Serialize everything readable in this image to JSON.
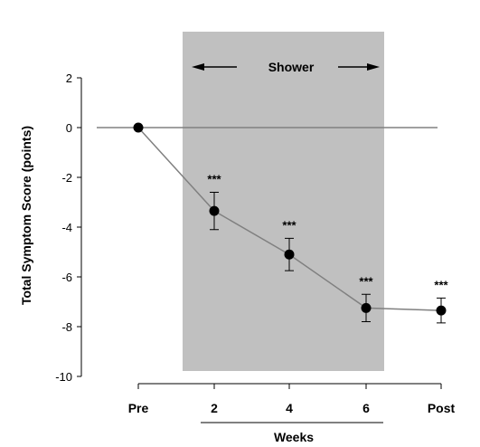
{
  "chart_data": {
    "type": "line",
    "ylabel": "Total Symptom Score (points)",
    "xlabel": "Weeks",
    "ylim": [
      -10,
      2
    ],
    "yticks": [
      2,
      0,
      -2,
      -4,
      -6,
      -8,
      -10
    ],
    "ytick_labels": [
      "2",
      "0",
      "-2",
      "-4",
      "-6",
      "-8",
      "-10"
    ],
    "categories": [
      "Pre",
      "2",
      "4",
      "6",
      "Post"
    ],
    "baseline": 0,
    "shaded_region": {
      "label": "Shower",
      "start_category": "2",
      "end_category": "6",
      "color": "#c0c0c0"
    },
    "weeks_bracket": {
      "label": "Weeks",
      "start_category": "2",
      "end_category": "6"
    },
    "series": [
      {
        "values": [
          0,
          -3.35,
          -5.1,
          -7.25,
          -7.35
        ],
        "errors": [
          0,
          0.75,
          0.65,
          0.55,
          0.5
        ],
        "significance": [
          "",
          "***",
          "***",
          "***",
          "***"
        ],
        "color": "#000000"
      }
    ]
  }
}
